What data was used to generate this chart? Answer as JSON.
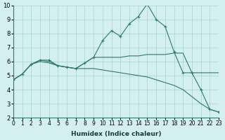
{
  "xlabel": "Humidex (Indice chaleur)",
  "x": [
    0,
    1,
    2,
    3,
    4,
    5,
    6,
    7,
    8,
    9,
    10,
    11,
    12,
    13,
    14,
    15,
    16,
    17,
    18,
    19,
    20,
    21,
    22,
    23
  ],
  "line1": [
    4.7,
    5.1,
    5.8,
    6.1,
    6.1,
    5.7,
    5.6,
    5.5,
    5.9,
    6.3,
    7.5,
    8.2,
    7.8,
    8.7,
    9.2,
    10.1,
    9.0,
    8.5,
    6.7,
    5.2,
    5.2,
    4.0,
    2.6,
    2.4
  ],
  "line2": [
    4.7,
    5.1,
    5.8,
    6.1,
    6.0,
    5.7,
    5.6,
    5.5,
    5.9,
    6.3,
    6.3,
    6.3,
    6.3,
    6.4,
    6.4,
    6.5,
    6.5,
    6.5,
    6.6,
    6.6,
    5.2,
    5.2,
    5.2,
    5.2
  ],
  "line3": [
    4.7,
    5.1,
    5.8,
    6.0,
    5.9,
    5.7,
    5.6,
    5.5,
    5.5,
    5.5,
    5.4,
    5.3,
    5.2,
    5.1,
    5.0,
    4.9,
    4.7,
    4.5,
    4.3,
    4.0,
    3.5,
    3.0,
    2.6,
    2.4
  ],
  "line_color": "#2d7a6e",
  "bg_color": "#d4efef",
  "grid_color": "#a8d0d0",
  "ylim": [
    2,
    10
  ],
  "yticks": [
    2,
    3,
    4,
    5,
    6,
    7,
    8,
    9,
    10
  ],
  "xlim": [
    0,
    23
  ]
}
